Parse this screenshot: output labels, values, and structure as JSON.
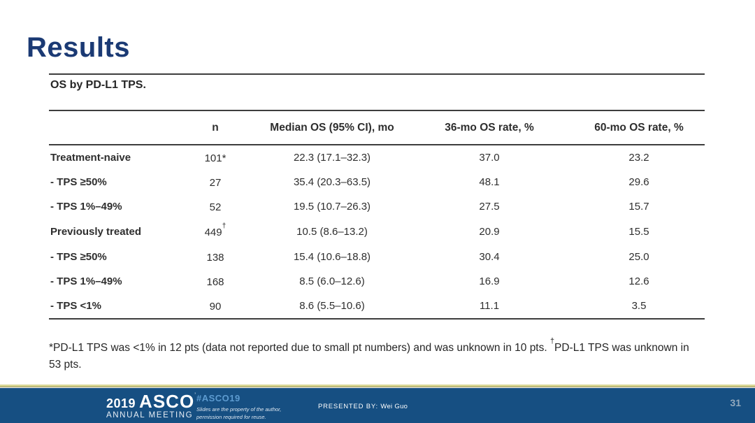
{
  "slide": {
    "title": "Results",
    "page_number": "31"
  },
  "table": {
    "caption": "OS by PD-L1 TPS.",
    "columns": [
      "",
      "n",
      "Median OS (95% CI), mo",
      "36-mo OS rate, %",
      "60-mo OS rate, %"
    ],
    "rows": [
      {
        "label": "Treatment-naive",
        "n": "101*",
        "n_sup": "",
        "median_os": "22.3 (17.1–32.3)",
        "os36": "37.0",
        "os60": "23.2"
      },
      {
        "label": "- TPS ≥50%",
        "n": "27",
        "n_sup": "",
        "median_os": "35.4 (20.3–63.5)",
        "os36": "48.1",
        "os60": "29.6"
      },
      {
        "label": "- TPS 1%–49%",
        "n": "52",
        "n_sup": "",
        "median_os": "19.5 (10.7–26.3)",
        "os36": "27.5",
        "os60": "15.7"
      },
      {
        "label": "Previously treated",
        "n": "449",
        "n_sup": "†",
        "median_os": "10.5 (8.6–13.2)",
        "os36": "20.9",
        "os60": "15.5"
      },
      {
        "label": "- TPS ≥50%",
        "n": "138",
        "n_sup": "",
        "median_os": "15.4 (10.6–18.8)",
        "os36": "30.4",
        "os60": "25.0"
      },
      {
        "label": "- TPS 1%–49%",
        "n": "168",
        "n_sup": "",
        "median_os": "8.5 (6.0–12.6)",
        "os36": "16.9",
        "os60": "12.6"
      },
      {
        "label": "- TPS <1%",
        "n": "90",
        "n_sup": "",
        "median_os": "8.6 (5.5–10.6)",
        "os36": "11.1",
        "os60": "3.5"
      }
    ],
    "footnote_part1": "*PD-L1 TPS was <1% in 12 pts (data not reported due to small pt numbers) and was unknown in 10 pts. ",
    "footnote_sup": "†",
    "footnote_part2": "PD-L1 TPS was unknown in 53 pts."
  },
  "footer": {
    "logo_year": "2019",
    "logo_name": "ASCO",
    "logo_mark": "’",
    "logo_sub": "ANNUAL MEETING",
    "hashtag": "#ASCO19",
    "disclaimer_line1": "Slides are the property of the author,",
    "disclaimer_line2": "permission required for reuse.",
    "presented_by_label": "PRESENTED BY:",
    "presenter": "Wei Guo"
  },
  "colors": {
    "title_navy": "#1b3a74",
    "footer_blue": "#164f82",
    "gold_line": "#d8d592",
    "hashtag_blue": "#5d9bd0",
    "page_number_gray": "#93a9bd",
    "table_rule": "#3d3d3d"
  }
}
